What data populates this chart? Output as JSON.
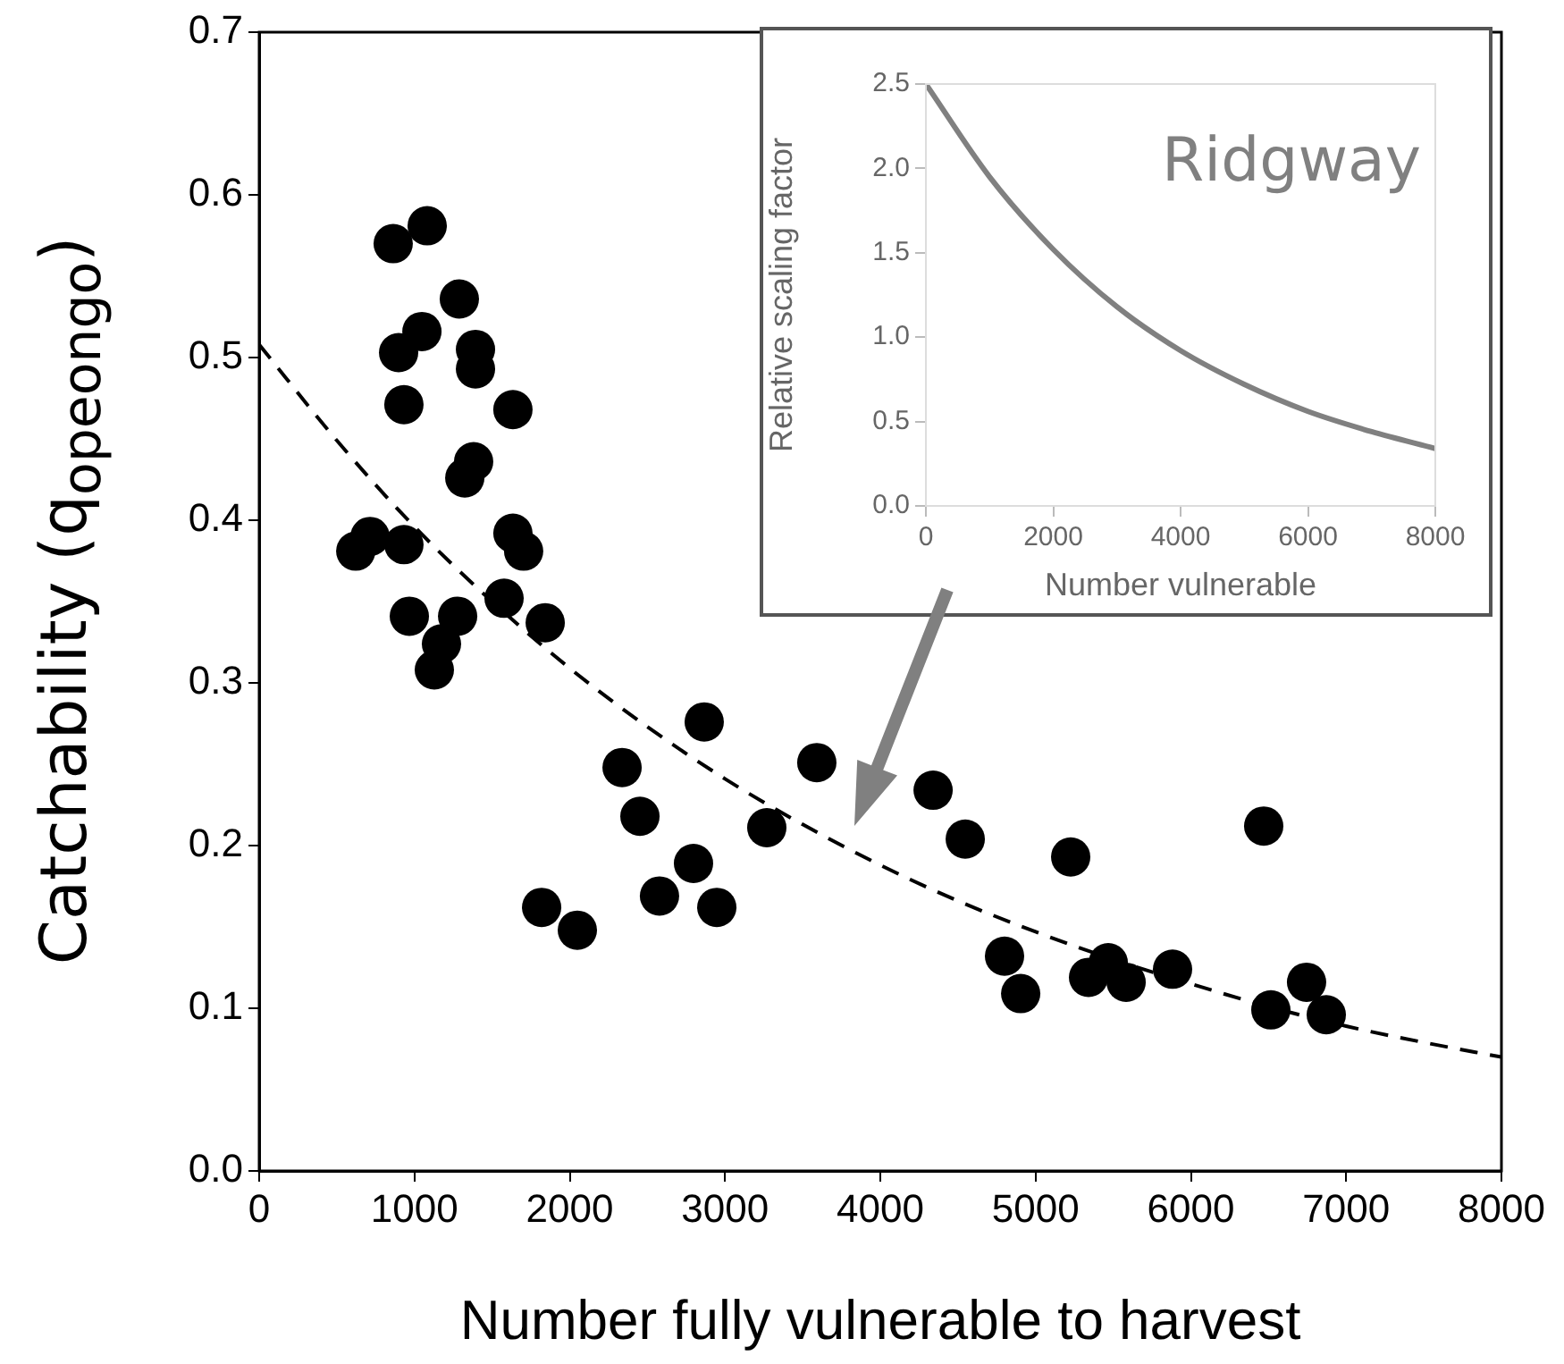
{
  "chart_data": [
    {
      "type": "scatter",
      "xlabel": "Number fully vulnerable to harvest",
      "ylabel": "Catchability (q$_{opeongo}$)",
      "xlim": [
        0,
        8000
      ],
      "xticks": [
        0,
        1000,
        2000,
        3000,
        4000,
        5000,
        6000,
        7000,
        8000
      ],
      "ylim": [
        0,
        0.7
      ],
      "yticks": [
        {
          "value": 0,
          "label": "0.0"
        },
        {
          "value": 0.1,
          "label": "0.1"
        },
        {
          "value": 0.2,
          "label": "0.2"
        },
        {
          "value": 0.3,
          "label": "0.3"
        },
        {
          "value": 0.4,
          "label": "0.4"
        },
        {
          "value": 0.5,
          "label": "0.5"
        },
        {
          "value": 0.6,
          "label": "0.6"
        },
        {
          "value": 0.7,
          "label": "0.7"
        }
      ],
      "grid": false,
      "legend": false,
      "marker": "circle",
      "series": [
        {
          "type": "scatter",
          "color": "#000000",
          "x": [
            863,
            1082,
            1289,
            1048,
            898,
            1393,
            1393,
            932,
            1634,
            1381,
            1324,
            622,
            714,
            932,
            1634,
            1703,
            967,
            1278,
            1174,
            1128,
            1577,
            1842,
            2866,
            2337,
            2452,
            3269,
            3591,
            4340,
            4547,
            5226,
            2797,
            2578,
            2947,
            1819,
            2049,
            6469,
            4800,
            4904,
            5341,
            5468,
            5583,
            5882,
            6515,
            6745,
            6872
          ],
          "values": [
            0.57,
            0.581,
            0.536,
            0.516,
            0.503,
            0.505,
            0.493,
            0.471,
            0.468,
            0.436,
            0.426,
            0.381,
            0.39,
            0.385,
            0.392,
            0.381,
            0.341,
            0.341,
            0.324,
            0.308,
            0.352,
            0.337,
            0.276,
            0.248,
            0.218,
            0.211,
            0.251,
            0.234,
            0.204,
            0.193,
            0.189,
            0.169,
            0.162,
            0.162,
            0.148,
            0.212,
            0.132,
            0.109,
            0.119,
            0.128,
            0.116,
            0.124,
            0.099,
            0.116,
            0.096
          ]
        },
        {
          "type": "line",
          "color": "#000000",
          "line_style": "dashed",
          "marker": "none",
          "x": [
            0,
            500,
            1000,
            1500,
            2000,
            2500,
            3000,
            3500,
            4000,
            4500,
            5000,
            5500,
            6000,
            6500,
            7000,
            7500,
            8000
          ],
          "values": [
            0.508,
            0.449,
            0.396,
            0.35,
            0.309,
            0.273,
            0.241,
            0.213,
            0.188,
            0.166,
            0.147,
            0.13,
            0.115,
            0.101,
            0.089,
            0.079,
            0.07
          ]
        }
      ]
    },
    {
      "type": "line",
      "xlabel": "Number vulnerable",
      "ylabel": "Relative scaling factor",
      "annotations": [
        "Ridgway"
      ],
      "xlim": [
        0,
        8000
      ],
      "xticks": [
        0,
        2000,
        4000,
        6000,
        8000
      ],
      "ylim": [
        0,
        2.5
      ],
      "yticks": [
        {
          "value": 0,
          "label": "0.0"
        },
        {
          "value": 0.5,
          "label": "0.5"
        },
        {
          "value": 1,
          "label": "1.0"
        },
        {
          "value": 1.5,
          "label": "1.5"
        },
        {
          "value": 2,
          "label": "2.0"
        },
        {
          "value": 2.5,
          "label": "2.5"
        }
      ],
      "grid": false,
      "legend": false,
      "marker": "none",
      "line_style": "solid",
      "series": [
        {
          "color": "#808080",
          "x": [
            0,
            1000,
            2000,
            3000,
            4000,
            5000,
            6000,
            7000,
            8000
          ],
          "values": [
            2.5,
            1.95,
            1.52,
            1.18,
            0.92,
            0.72,
            0.56,
            0.44,
            0.34
          ]
        }
      ]
    }
  ]
}
